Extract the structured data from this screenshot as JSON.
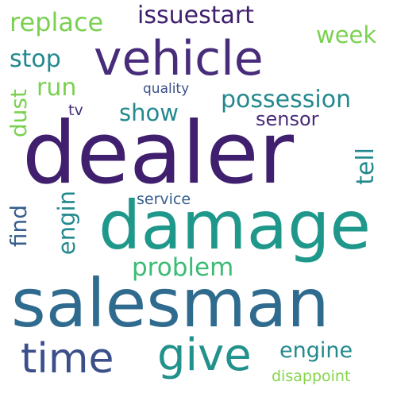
{
  "words": {
    "dealer": "dealer",
    "damage": "damage",
    "salesman": "salesman",
    "vehicle": "vehicle",
    "time": "time",
    "give": "give",
    "issuestart": "issuestart",
    "replace": "replace",
    "possession": "possession",
    "problem": "problem",
    "engine": "engine",
    "show": "show",
    "run": "run",
    "stop": "stop",
    "week": "week",
    "sensor": "sensor",
    "tell": "tell",
    "engin": "engin",
    "find": "find",
    "dust": "dust",
    "service": "service",
    "quality": "quality",
    "tv": "tv",
    "disappoint": "disappoint"
  }
}
